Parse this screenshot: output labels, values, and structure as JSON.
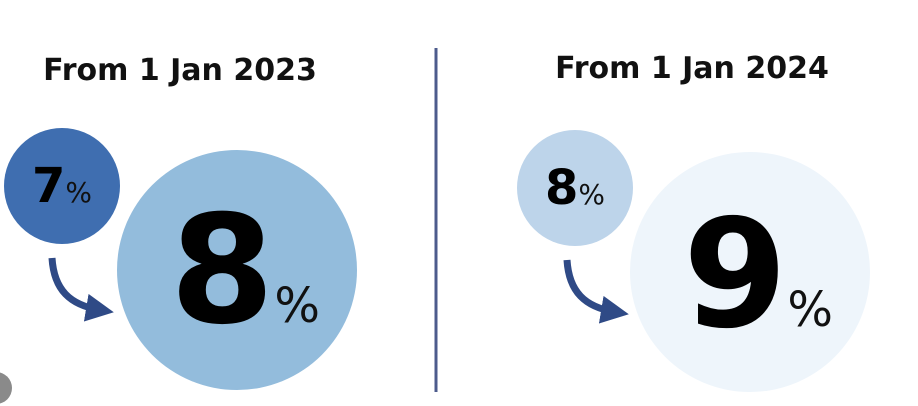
{
  "panels": [
    {
      "title": "From 1 Jan 2023",
      "old_rate": "7",
      "old_unit": "%",
      "new_rate": "8",
      "new_unit": "%"
    },
    {
      "title": "From 1 Jan 2024",
      "old_rate": "8",
      "old_unit": "%",
      "new_rate": "9",
      "new_unit": "%"
    }
  ]
}
